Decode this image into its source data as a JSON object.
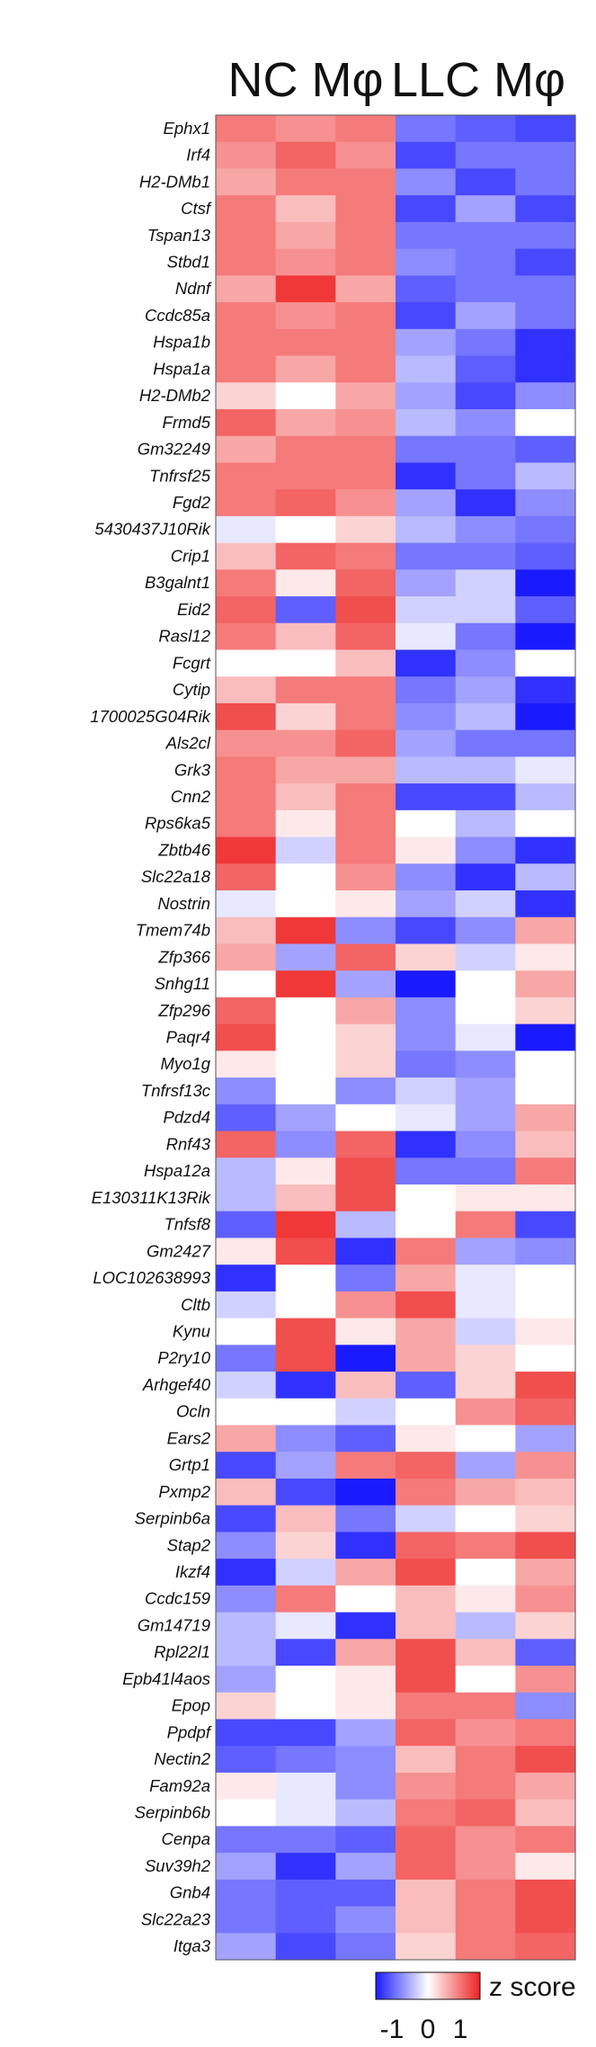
{
  "chart_data": {
    "type": "heatmap",
    "groups": [
      "NC Mφ",
      "LLC Mφ"
    ],
    "columns_per_group": 3,
    "genes": [
      "Ephx1",
      "Irf4",
      "H2-DMb1",
      "Ctsf",
      "Tspan13",
      "Stbd1",
      "Ndnf",
      "Ccdc85a",
      "Hspa1b",
      "Hspa1a",
      "H2-DMb2",
      "Frmd5",
      "Gm32249",
      "Tnfrsf25",
      "Fgd2",
      "5430437J10Rik",
      "Crip1",
      "B3galnt1",
      "Eid2",
      "Rasl12",
      "Fcgrt",
      "Cytip",
      "1700025G04Rik",
      "Als2cl",
      "Grk3",
      "Cnn2",
      "Rps6ka5",
      "Zbtb46",
      "Slc22a18",
      "Nostrin",
      "Tmem74b",
      "Zfp366",
      "Snhg11",
      "Zfp296",
      "Paqr4",
      "Myo1g",
      "Tnfrsf13c",
      "Pdzd4",
      "Rnf43",
      "Hspa12a",
      "E130311K13Rik",
      "Tnfsf8",
      "Gm2427",
      "LOC102638993",
      "Cltb",
      "Kynu",
      "P2ry10",
      "Arhgef40",
      "Ocln",
      "Ears2",
      "Grtp1",
      "Pxmp2",
      "Serpinb6a",
      "Stap2",
      "Ikzf4",
      "Ccdc159",
      "Gm14719",
      "Rpl22l1",
      "Epb41l4aos",
      "Epop",
      "Ppdpf",
      "Nectin2",
      "Fam92a",
      "Serpinb6b",
      "Cenpa",
      "Suv39h2",
      "Gnb4",
      "Slc22a23",
      "Itga3"
    ],
    "values": [
      [
        0.6,
        0.5,
        0.6,
        -0.6,
        -0.7,
        -0.8
      ],
      [
        0.5,
        0.7,
        0.5,
        -0.8,
        -0.6,
        -0.6
      ],
      [
        0.4,
        0.6,
        0.6,
        -0.5,
        -0.8,
        -0.6
      ],
      [
        0.6,
        0.3,
        0.6,
        -0.8,
        -0.4,
        -0.8
      ],
      [
        0.6,
        0.4,
        0.6,
        -0.6,
        -0.6,
        -0.6
      ],
      [
        0.6,
        0.5,
        0.6,
        -0.5,
        -0.6,
        -0.8
      ],
      [
        0.4,
        0.9,
        0.4,
        -0.7,
        -0.6,
        -0.6
      ],
      [
        0.6,
        0.5,
        0.6,
        -0.8,
        -0.4,
        -0.6
      ],
      [
        0.6,
        0.6,
        0.6,
        -0.4,
        -0.6,
        -0.9
      ],
      [
        0.6,
        0.4,
        0.6,
        -0.3,
        -0.7,
        -0.9
      ],
      [
        0.2,
        0.0,
        0.4,
        -0.4,
        -0.8,
        -0.5
      ],
      [
        0.7,
        0.4,
        0.5,
        -0.3,
        -0.5,
        0.0
      ],
      [
        0.4,
        0.6,
        0.6,
        -0.6,
        -0.6,
        -0.7
      ],
      [
        0.6,
        0.6,
        0.6,
        -0.9,
        -0.6,
        -0.3
      ],
      [
        0.6,
        0.7,
        0.5,
        -0.4,
        -0.9,
        -0.5
      ],
      [
        -0.1,
        0.0,
        0.2,
        -0.3,
        -0.5,
        -0.6
      ],
      [
        0.3,
        0.7,
        0.6,
        -0.6,
        -0.6,
        -0.7
      ],
      [
        0.6,
        0.1,
        0.7,
        -0.4,
        -0.2,
        -1.0
      ],
      [
        0.7,
        -0.7,
        0.8,
        -0.2,
        -0.2,
        -0.7
      ],
      [
        0.6,
        0.3,
        0.7,
        -0.1,
        -0.6,
        -1.0
      ],
      [
        0.0,
        0.0,
        0.3,
        -0.9,
        -0.5,
        0.0
      ],
      [
        0.3,
        0.6,
        0.6,
        -0.6,
        -0.4,
        -0.9
      ],
      [
        0.8,
        0.2,
        0.6,
        -0.5,
        -0.3,
        -1.0
      ],
      [
        0.5,
        0.5,
        0.7,
        -0.4,
        -0.6,
        -0.6
      ],
      [
        0.6,
        0.4,
        0.4,
        -0.3,
        -0.3,
        -0.1
      ],
      [
        0.6,
        0.3,
        0.6,
        -0.8,
        -0.8,
        -0.3
      ],
      [
        0.6,
        0.1,
        0.6,
        0.0,
        -0.3,
        0.0
      ],
      [
        0.9,
        -0.2,
        0.6,
        0.1,
        -0.5,
        -0.9
      ],
      [
        0.7,
        0.0,
        0.5,
        -0.5,
        -0.9,
        -0.3
      ],
      [
        -0.1,
        0.0,
        0.1,
        -0.4,
        -0.2,
        -0.9
      ],
      [
        0.3,
        0.9,
        -0.5,
        -0.8,
        -0.5,
        0.4
      ],
      [
        0.4,
        -0.4,
        0.7,
        0.2,
        -0.2,
        0.1
      ],
      [
        0.0,
        0.9,
        -0.4,
        -1.0,
        0.0,
        0.4
      ],
      [
        0.7,
        0.0,
        0.4,
        -0.5,
        0.0,
        0.2
      ],
      [
        0.8,
        0.0,
        0.2,
        -0.5,
        -0.1,
        -1.0
      ],
      [
        0.1,
        0.0,
        0.2,
        -0.6,
        -0.5,
        0.0
      ],
      [
        -0.5,
        0.0,
        -0.5,
        -0.2,
        -0.4,
        0.0
      ],
      [
        -0.7,
        -0.4,
        0.0,
        -0.1,
        -0.4,
        0.4
      ],
      [
        0.7,
        -0.5,
        0.7,
        -0.9,
        -0.5,
        0.3
      ],
      [
        -0.3,
        0.1,
        0.8,
        -0.6,
        -0.6,
        0.6
      ],
      [
        -0.3,
        0.3,
        0.8,
        0.0,
        0.1,
        0.1
      ],
      [
        -0.7,
        0.9,
        -0.3,
        0.0,
        0.6,
        -0.8
      ],
      [
        0.1,
        0.8,
        -0.9,
        0.6,
        -0.4,
        -0.5
      ],
      [
        -0.9,
        0.0,
        -0.6,
        0.4,
        -0.1,
        0.0
      ],
      [
        -0.2,
        0.0,
        0.5,
        0.8,
        -0.1,
        0.0
      ],
      [
        0.0,
        0.8,
        0.1,
        0.4,
        -0.2,
        0.1
      ],
      [
        -0.6,
        0.8,
        -1.0,
        0.4,
        0.2,
        0.0
      ],
      [
        -0.2,
        -0.9,
        0.3,
        -0.7,
        0.2,
        0.8
      ],
      [
        0.0,
        0.0,
        -0.2,
        0.0,
        0.5,
        0.7
      ],
      [
        0.4,
        -0.5,
        -0.7,
        0.1,
        0.0,
        -0.4
      ],
      [
        -0.8,
        -0.4,
        0.6,
        0.7,
        -0.4,
        0.5
      ],
      [
        0.3,
        -0.8,
        -1.0,
        0.6,
        0.4,
        0.3
      ],
      [
        -0.8,
        0.3,
        -0.6,
        -0.2,
        0.0,
        0.2
      ],
      [
        -0.5,
        0.2,
        -0.9,
        0.7,
        0.6,
        0.8
      ],
      [
        -0.9,
        -0.2,
        0.4,
        0.8,
        0.0,
        0.4
      ],
      [
        -0.5,
        0.6,
        0.0,
        0.3,
        0.1,
        0.5
      ],
      [
        -0.3,
        -0.1,
        -0.9,
        0.3,
        -0.3,
        0.2
      ],
      [
        -0.3,
        -0.8,
        0.4,
        0.8,
        0.3,
        -0.7
      ],
      [
        -0.4,
        0.0,
        0.1,
        0.8,
        0.0,
        0.5
      ],
      [
        0.2,
        0.0,
        0.1,
        0.6,
        0.6,
        -0.5
      ],
      [
        -0.8,
        -0.8,
        -0.4,
        0.7,
        0.5,
        0.6
      ],
      [
        -0.7,
        -0.6,
        -0.5,
        0.3,
        0.6,
        0.8
      ],
      [
        0.1,
        -0.1,
        -0.5,
        0.5,
        0.6,
        0.4
      ],
      [
        0.0,
        -0.1,
        -0.3,
        0.6,
        0.7,
        0.3
      ],
      [
        -0.6,
        -0.6,
        -0.7,
        0.7,
        0.5,
        0.6
      ],
      [
        -0.4,
        -0.9,
        -0.4,
        0.7,
        0.5,
        0.1
      ],
      [
        -0.6,
        -0.7,
        -0.7,
        0.3,
        0.6,
        0.8
      ],
      [
        -0.6,
        -0.7,
        -0.5,
        0.3,
        0.6,
        0.8
      ],
      [
        -0.4,
        -0.8,
        -0.6,
        0.2,
        0.6,
        0.7
      ]
    ],
    "legend": {
      "title": "z score",
      "ticks": [
        "-1",
        "0",
        "1"
      ],
      "range": [
        -1,
        1
      ]
    },
    "colors": {
      "low": "#1a1aff",
      "mid": "#ffffff",
      "high": "#ee2222"
    }
  }
}
